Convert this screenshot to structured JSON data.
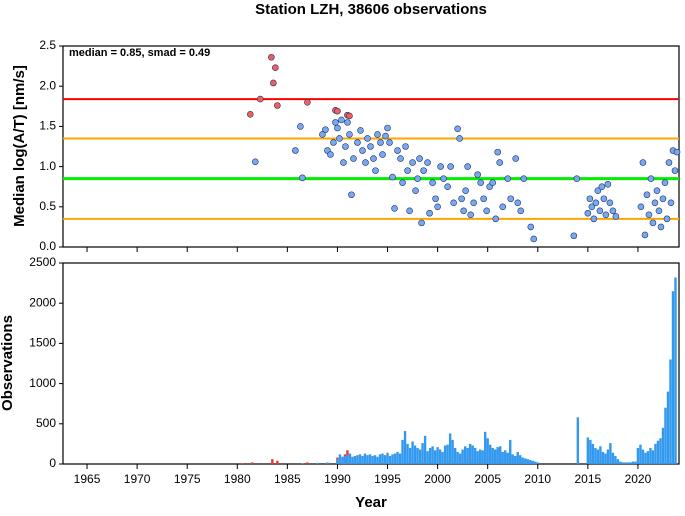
{
  "chart_data": [
    {
      "type": "scatter",
      "title": "Station LZH, 38606 observations",
      "ylabel": "Median log(A/T) [nm/s]",
      "annotation": "median = 0.85, smad = 0.49",
      "xlim": [
        1962.6,
        2024.1
      ],
      "xticks": [
        1965,
        1970,
        1975,
        1980,
        1985,
        1990,
        1995,
        2000,
        2005,
        2010,
        2015,
        2020
      ],
      "ylim": [
        0,
        2.5
      ],
      "yticks": [
        {
          "value": 0,
          "label": "0.0"
        },
        0.5,
        {
          "value": 1,
          "label": "1.0"
        },
        1.5,
        {
          "value": 2,
          "label": "2.0"
        },
        2.5
      ],
      "hlines": [
        {
          "value": 1.84,
          "color": "#ff0000"
        },
        {
          "value": 1.35,
          "color": "#ffa500"
        },
        {
          "value": 0.85,
          "color": "#00ee00"
        },
        {
          "value": 0.35,
          "color": "#ffa500"
        }
      ],
      "series": [
        {
          "color": "#f0605a",
          "x": [
            1981.3,
            1982.3,
            1983.4,
            1983.6,
            1983.8,
            1984.0,
            1987.0,
            1989.8,
            1990.0,
            1991.0,
            1991.2
          ],
          "values": [
            1.65,
            1.84,
            2.36,
            2.04,
            2.23,
            1.76,
            1.8,
            1.7,
            1.69,
            1.64,
            1.63
          ]
        },
        {
          "color": "#78a8f0",
          "x": [
            1981.8,
            1985.8,
            1986.3,
            1986.5,
            1988.5,
            1988.8,
            1989,
            1989.3,
            1989.6,
            1989.8,
            1990,
            1990.2,
            1990.4,
            1990.6,
            1990.8,
            1991,
            1991.2,
            1991.4,
            1991.6,
            1992,
            1992.3,
            1992.5,
            1992.8,
            1993,
            1993.3,
            1993.6,
            1993.8,
            1994,
            1994.3,
            1994.5,
            1994.8,
            1995,
            1995.2,
            1995.5,
            1995.7,
            1996,
            1996.3,
            1996.5,
            1996.8,
            1997,
            1997.2,
            1997.5,
            1997.8,
            1998,
            1998.2,
            1998.4,
            1998.6,
            1999,
            1999.2,
            1999.5,
            1999.8,
            2000,
            2000.3,
            2000.6,
            2001,
            2001.3,
            2001.6,
            2002,
            2002.2,
            2002.4,
            2002.6,
            2002.8,
            2003,
            2003.3,
            2003.6,
            2004,
            2004.3,
            2004.6,
            2004.9,
            2005.2,
            2005.5,
            2005.8,
            2006,
            2006.2,
            2006.5,
            2007,
            2007.3,
            2007.8,
            2008,
            2008.3,
            2008.6,
            2009.3,
            2009.6,
            2013.6,
            2013.9,
            2015,
            2015.2,
            2015.4,
            2015.6,
            2015.8,
            2016,
            2016.2,
            2016.4,
            2016.6,
            2016.8,
            2017,
            2017.2,
            2017.5,
            2017.8,
            2020.3,
            2020.5,
            2020.7,
            2020.9,
            2021.1,
            2021.3,
            2021.5,
            2021.7,
            2021.9,
            2022.1,
            2022.3,
            2022.5,
            2022.7,
            2022.9,
            2023.1,
            2023.3,
            2023.5,
            2023.7,
            2023.9
          ],
          "values": [
            1.06,
            1.2,
            1.5,
            0.86,
            1.4,
            1.46,
            1.2,
            1.15,
            1.3,
            1.55,
            1.48,
            1.35,
            1.58,
            1.05,
            1.25,
            1.55,
            1.4,
            0.65,
            1.1,
            1.3,
            1.45,
            1.2,
            1.05,
            1.35,
            1.25,
            1.1,
            0.95,
            1.4,
            1.3,
            1.15,
            1.38,
            1.48,
            1.3,
            0.87,
            0.48,
            1.2,
            1.1,
            0.8,
            1.25,
            0.95,
            0.45,
            1.05,
            0.7,
            0.85,
            1.1,
            0.3,
            0.95,
            1.05,
            0.42,
            0.8,
            0.6,
            0.5,
            1.0,
            0.85,
            0.75,
            1.0,
            0.55,
            1.47,
            1.35,
            0.6,
            0.45,
            0.7,
            1.0,
            0.4,
            0.55,
            0.9,
            0.8,
            0.6,
            0.45,
            0.75,
            0.8,
            0.35,
            1.18,
            1.05,
            0.5,
            0.85,
            0.6,
            1.1,
            0.55,
            0.45,
            0.85,
            0.25,
            0.1,
            0.14,
            0.85,
            0.42,
            0.6,
            0.5,
            0.35,
            0.55,
            0.7,
            0.45,
            0.75,
            0.6,
            0.4,
            0.78,
            0.55,
            0.45,
            0.38,
            0.5,
            1.05,
            0.15,
            0.65,
            0.4,
            0.85,
            0.3,
            0.55,
            0.7,
            0.45,
            0.25,
            0.6,
            0.8,
            0.35,
            1.05,
            0.55,
            1.2,
            0.95,
            1.18
          ]
        }
      ]
    },
    {
      "type": "histogram",
      "ylabel": "Observations",
      "xlabel": "Year",
      "xlim": [
        1962.6,
        2024.1
      ],
      "xticks": [
        1965,
        1970,
        1975,
        1980,
        1985,
        1990,
        1995,
        2000,
        2005,
        2010,
        2015,
        2020
      ],
      "ylim": [
        0,
        2500
      ],
      "yticks": [
        0,
        500,
        1000,
        1500,
        2000,
        2500
      ],
      "series": [
        {
          "color": "#ee3333",
          "x": [
            1980.5,
            1981.5,
            1983.5,
            1984,
            1987,
            1990,
            1990.75,
            1991
          ],
          "values": [
            10,
            20,
            60,
            40,
            20,
            80,
            120,
            170
          ]
        },
        {
          "color": "#3399ee",
          "x": [
            1986.5,
            1988,
            1989,
            1990,
            1990.25,
            1990.5,
            1990.75,
            1991,
            1991.25,
            1991.5,
            1991.75,
            1992,
            1992.25,
            1992.5,
            1992.75,
            1993,
            1993.25,
            1993.5,
            1993.75,
            1994,
            1994.25,
            1994.5,
            1994.75,
            1995,
            1995.25,
            1995.5,
            1995.75,
            1996,
            1996.25,
            1996.5,
            1996.75,
            1997,
            1997.25,
            1997.5,
            1997.75,
            1998,
            1998.25,
            1998.5,
            1998.75,
            1999,
            1999.25,
            1999.5,
            1999.75,
            2000,
            2000.25,
            2000.5,
            2000.75,
            2001,
            2001.25,
            2001.5,
            2001.75,
            2002,
            2002.25,
            2002.5,
            2002.75,
            2003,
            2003.25,
            2003.5,
            2003.75,
            2004,
            2004.25,
            2004.5,
            2004.75,
            2005,
            2005.25,
            2005.5,
            2005.75,
            2006,
            2006.25,
            2006.5,
            2006.75,
            2007,
            2007.25,
            2007.5,
            2007.75,
            2008,
            2008.25,
            2008.5,
            2008.75,
            2009,
            2009.25,
            2009.5,
            2009.75,
            2010,
            2014,
            2015,
            2015.25,
            2015.5,
            2015.75,
            2016,
            2016.25,
            2016.5,
            2016.75,
            2017,
            2017.25,
            2017.5,
            2017.75,
            2018,
            2018.25,
            2018.5,
            2018.75,
            2019,
            2019.25,
            2019.5,
            2019.75,
            2020,
            2020.25,
            2020.5,
            2020.75,
            2021,
            2021.25,
            2021.5,
            2021.75,
            2022,
            2022.25,
            2022.5,
            2022.75,
            2023,
            2023.25,
            2023.5,
            2023.75
          ],
          "values": [
            10,
            15,
            20,
            60,
            120,
            90,
            100,
            110,
            130,
            90,
            100,
            110,
            120,
            100,
            130,
            110,
            120,
            100,
            110,
            90,
            120,
            130,
            110,
            140,
            100,
            120,
            130,
            150,
            130,
            300,
            410,
            250,
            200,
            280,
            230,
            200,
            180,
            260,
            350,
            160,
            200,
            220,
            170,
            210,
            180,
            150,
            230,
            240,
            380,
            300,
            200,
            150,
            130,
            180,
            220,
            200,
            250,
            230,
            200,
            160,
            180,
            170,
            400,
            320,
            240,
            200,
            180,
            210,
            220,
            150,
            170,
            140,
            300,
            120,
            100,
            150,
            110,
            80,
            70,
            60,
            50,
            40,
            30,
            20,
            580,
            330,
            300,
            250,
            200,
            180,
            220,
            150,
            130,
            180,
            260,
            140,
            100,
            60,
            30,
            20,
            20,
            20,
            20,
            30,
            30,
            200,
            240,
            180,
            140,
            160,
            200,
            170,
            250,
            290,
            320,
            450,
            700,
            900,
            1300,
            2150,
            2320
          ]
        }
      ]
    }
  ]
}
